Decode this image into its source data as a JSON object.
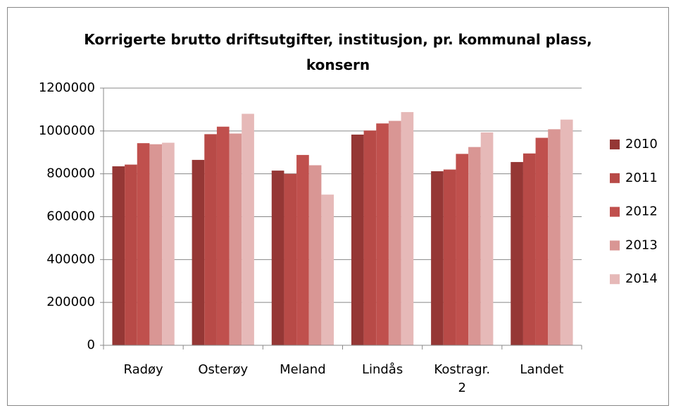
{
  "chart_data": {
    "type": "bar",
    "title": "Korrigerte brutto driftsutgifter, institusjon, pr. kommunal plass, konsern",
    "categories": [
      "Radøy",
      "Osterøy",
      "Meland",
      "Lindås",
      "Kostragr. 2",
      "Landet"
    ],
    "series": [
      {
        "name": "2010",
        "color": "#953735",
        "values": [
          835000,
          865000,
          815000,
          983000,
          812000,
          855000
        ]
      },
      {
        "name": "2011",
        "color": "#b84a47",
        "values": [
          843000,
          985000,
          800000,
          1002000,
          820000,
          895000
        ]
      },
      {
        "name": "2012",
        "color": "#c0504d",
        "values": [
          943000,
          1020000,
          888000,
          1035000,
          893000,
          968000
        ]
      },
      {
        "name": "2013",
        "color": "#d99694",
        "values": [
          938000,
          988000,
          840000,
          1047000,
          925000,
          1008000
        ]
      },
      {
        "name": "2014",
        "color": "#e6b9b8",
        "values": [
          945000,
          1080000,
          703000,
          1088000,
          993000,
          1053000
        ]
      }
    ],
    "ylim": [
      0,
      1200000
    ],
    "yticks": [
      0,
      200000,
      400000,
      600000,
      800000,
      1000000,
      1200000
    ],
    "grid": true,
    "legend": "right"
  }
}
